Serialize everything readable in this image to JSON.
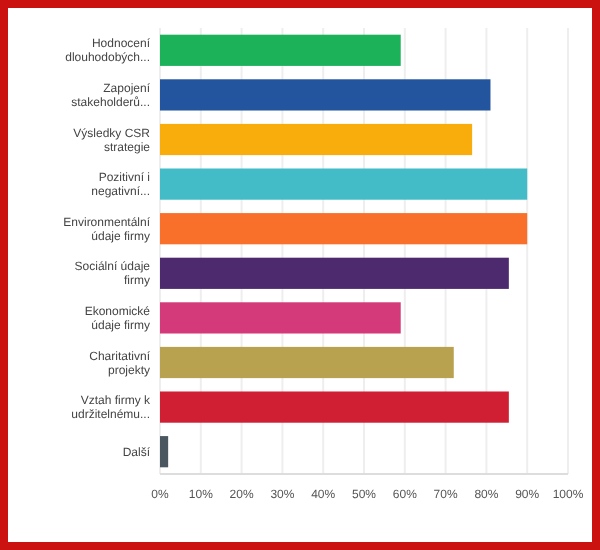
{
  "chart_data": {
    "type": "bar",
    "orientation": "horizontal",
    "categories": [
      "Hodnocení dlouhodobých...",
      "Zapojení stakeholderů...",
      "Výsledky CSR strategie",
      "Pozitivní i negativní...",
      "Environmentální údaje firmy",
      "Sociální údaje firmy",
      "Ekonomické údaje firmy",
      "Charitativní projekty",
      "Vztah firmy k udržitelnému...",
      "Další"
    ],
    "values": [
      59,
      81,
      76.5,
      90,
      90,
      85.5,
      59,
      72,
      85.5,
      2
    ],
    "colors": [
      "#1cb25a",
      "#23559e",
      "#f8ad0c",
      "#44bcc8",
      "#f8702a",
      "#4d2a6e",
      "#d43a79",
      "#b9a24f",
      "#d01f33",
      "#4a5660"
    ],
    "xlim": [
      0,
      100
    ],
    "xticks": [
      {
        "value": 0,
        "label": "0%"
      },
      {
        "value": 10,
        "label": "10%"
      },
      {
        "value": 20,
        "label": "20%"
      },
      {
        "value": 30,
        "label": "30%"
      },
      {
        "value": 40,
        "label": "40%"
      },
      {
        "value": 50,
        "label": "50%"
      },
      {
        "value": 60,
        "label": "60%"
      },
      {
        "value": 70,
        "label": "70%"
      },
      {
        "value": 80,
        "label": "80%"
      },
      {
        "value": 90,
        "label": "90%"
      },
      {
        "value": 100,
        "label": "100%"
      }
    ],
    "grid": "x"
  }
}
